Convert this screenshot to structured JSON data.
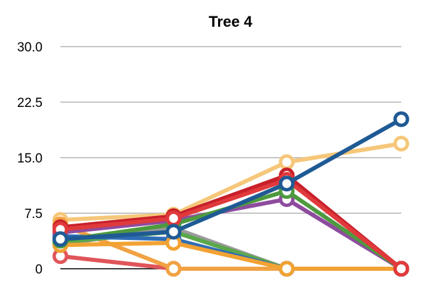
{
  "chart_data": {
    "type": "line",
    "title": "Tree 4",
    "xlabel": "",
    "ylabel": "",
    "x": [
      1,
      2,
      3,
      4
    ],
    "ylim": [
      0,
      30
    ],
    "yticks": [
      "0",
      "7.5",
      "15.0",
      "22.5",
      "30.0"
    ],
    "grid": true,
    "series": [
      {
        "color": "#f6c77a",
        "values": [
          6.6,
          7.3,
          14.4,
          16.9
        ]
      },
      {
        "color": "#e0555a",
        "values": [
          1.7,
          0,
          0,
          0
        ]
      },
      {
        "color": "#f2a243",
        "values": [
          6.0,
          0,
          0,
          0
        ]
      },
      {
        "color": "#9a9a9a",
        "values": [
          3.3,
          5.5,
          0,
          0
        ]
      },
      {
        "color": "#5aa84b",
        "values": [
          3.6,
          5.0,
          0,
          0
        ]
      },
      {
        "color": "#2e6db5",
        "values": [
          4.4,
          4.0,
          0,
          0
        ]
      },
      {
        "color": "#f2a233",
        "values": [
          3.2,
          3.5,
          0,
          0
        ]
      },
      {
        "color": "#8e4c9e",
        "values": [
          4.9,
          6.5,
          9.4,
          0
        ]
      },
      {
        "color": "#4e9a3e",
        "values": [
          3.8,
          6.0,
          10.5,
          0
        ]
      },
      {
        "color": "#c8202a",
        "values": [
          5.6,
          7.1,
          12.6,
          0
        ]
      },
      {
        "color": "#e03a3c",
        "values": [
          5.3,
          6.8,
          12.0,
          0
        ]
      },
      {
        "color": "#1f5a94",
        "values": [
          4.0,
          5.0,
          11.5,
          20.2
        ]
      }
    ]
  }
}
